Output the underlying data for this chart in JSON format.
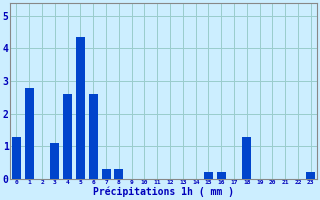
{
  "hours": [
    0,
    1,
    2,
    3,
    4,
    5,
    6,
    7,
    8,
    9,
    10,
    11,
    12,
    13,
    14,
    15,
    16,
    17,
    18,
    19,
    20,
    21,
    22,
    23
  ],
  "values": [
    1.3,
    2.8,
    0.0,
    1.1,
    2.6,
    4.35,
    2.6,
    0.3,
    0.3,
    0.0,
    0.0,
    0.0,
    0.0,
    0.0,
    0.0,
    0.2,
    0.2,
    0.0,
    1.3,
    0.0,
    0.0,
    0.0,
    0.0,
    0.2
  ],
  "bar_color": "#0044cc",
  "bar_color2": "#0088ff",
  "background_color": "#cceeff",
  "grid_color": "#99cccc",
  "text_color": "#0000bb",
  "xlabel": "Précipitations 1h ( mm )",
  "ylim": [
    0,
    5.4
  ],
  "yticks": [
    0,
    1,
    2,
    3,
    4,
    5
  ],
  "xlim": [
    -0.5,
    23.5
  ]
}
